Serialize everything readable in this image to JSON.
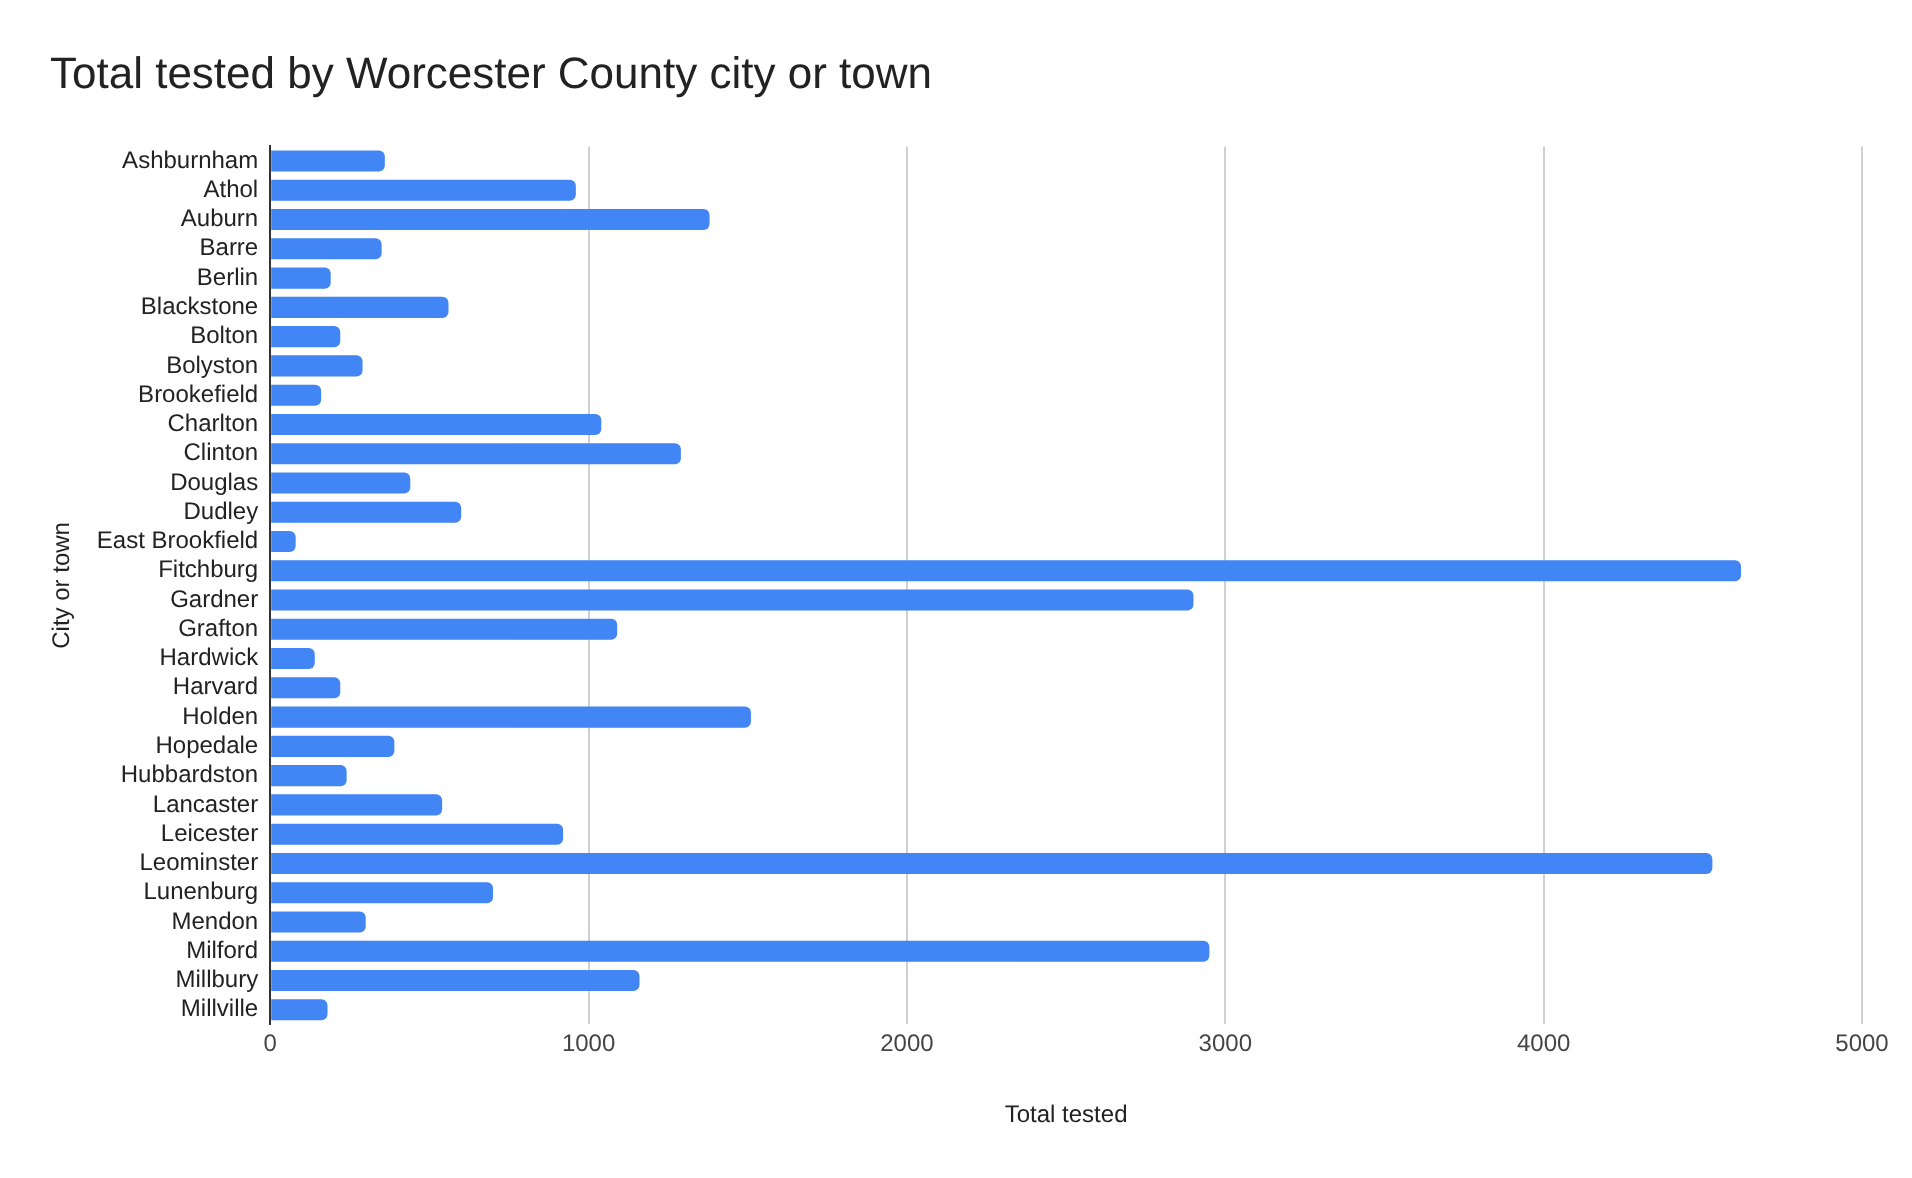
{
  "chart_data": {
    "type": "bar",
    "orientation": "horizontal",
    "title": "Total tested by Worcester County city or town",
    "xlabel": "Total tested",
    "ylabel": "City or town",
    "categories": [
      "Ashburnham",
      "Athol",
      "Auburn",
      "Barre",
      "Berlin",
      "Blackstone",
      "Bolton",
      "Bolyston",
      "Brookefield",
      "Charlton",
      "Clinton",
      "Douglas",
      "Dudley",
      "East Brookfield",
      "Fitchburg",
      "Gardner",
      "Grafton",
      "Hardwick",
      "Harvard",
      "Holden",
      "Hopedale",
      "Hubbardston",
      "Lancaster",
      "Leicester",
      "Leominster",
      "Lunenburg",
      "Mendon",
      "Milford",
      "Millbury",
      "Millville"
    ],
    "values": [
      360,
      960,
      1380,
      350,
      190,
      560,
      220,
      290,
      160,
      1040,
      1290,
      440,
      600,
      80,
      4620,
      2900,
      1090,
      140,
      220,
      1510,
      390,
      240,
      540,
      920,
      4530,
      700,
      300,
      2950,
      1160,
      180
    ],
    "color": "#4285f4",
    "xlim": [
      0,
      5000
    ],
    "xticks": [
      0,
      1000,
      2000,
      3000,
      4000,
      5000
    ],
    "grid": "x"
  }
}
